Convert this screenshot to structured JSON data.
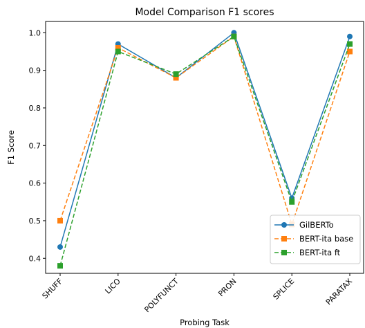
{
  "chart_data": {
    "type": "line",
    "title": "Model Comparison F1 scores",
    "xlabel": "Probing Task",
    "ylabel": "F1 Score",
    "categories": [
      "SHUFF",
      "LICO",
      "POLYFUNCT",
      "PRON",
      "SPLICE",
      "PARATAX"
    ],
    "ylim": [
      0.36,
      1.03
    ],
    "yticks": [
      "0.4",
      "0.5",
      "0.6",
      "0.7",
      "0.8",
      "0.9",
      "1.0"
    ],
    "grid": false,
    "legend_position": "lower-right",
    "series": [
      {
        "name": "GilBERTo",
        "values": [
          0.43,
          0.97,
          0.88,
          1.0,
          0.56,
          0.99
        ],
        "color": "#1f77b4",
        "line_style": "solid",
        "marker": "circle"
      },
      {
        "name": "BERT-ita base",
        "values": [
          0.5,
          0.96,
          0.88,
          0.99,
          0.49,
          0.95
        ],
        "color": "#ff7f0e",
        "line_style": "dashed",
        "marker": "square"
      },
      {
        "name": "BERT-ita ft",
        "values": [
          0.38,
          0.95,
          0.89,
          0.99,
          0.55,
          0.97
        ],
        "color": "#2ca02c",
        "line_style": "dashed",
        "marker": "square"
      }
    ]
  }
}
